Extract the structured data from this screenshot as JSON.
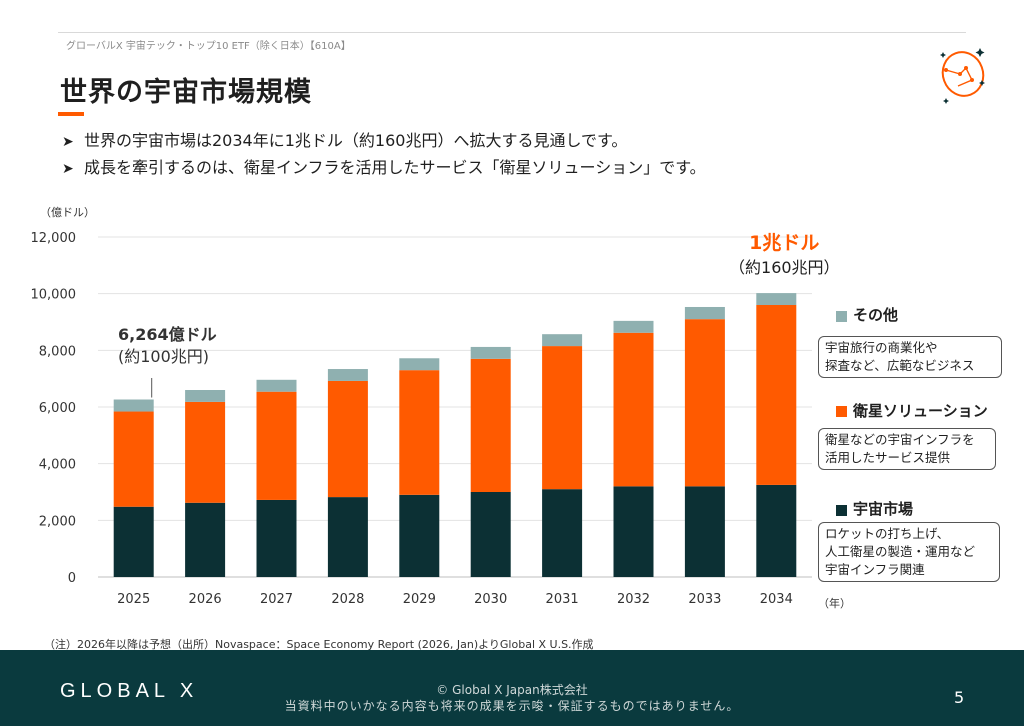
{
  "header": {
    "breadcrumb": "グローバルX 宇宙テック・トップ10 ETF（除く日本）【610A】",
    "title": "世界の宇宙市場規模"
  },
  "bullets": [
    {
      "marker": "➤",
      "text": "世界の宇宙市場は2034年に1兆ドル（約160兆円）へ拡大する見通しです。"
    },
    {
      "marker": "➤",
      "text": "成長を牽引するのは、衛星インフラを活用したサービス「衛星ソリューション」です。"
    }
  ],
  "chart_data": {
    "type": "bar",
    "stacked": true,
    "ylabel": "（億ドル）",
    "xlabel": "（年）",
    "categories": [
      "2025",
      "2026",
      "2027",
      "2028",
      "2029",
      "2030",
      "2031",
      "2032",
      "2033",
      "2034"
    ],
    "ylim": [
      0,
      12000
    ],
    "yticks": [
      0,
      2000,
      4000,
      6000,
      8000,
      10000,
      12000
    ],
    "ytick_labels": [
      "0",
      "2,000",
      "4,000",
      "6,000",
      "8,000",
      "10,000",
      "12,000"
    ],
    "grid": true,
    "series": [
      {
        "name": "宇宙市場",
        "color": "#0c3034",
        "values": [
          2480,
          2620,
          2720,
          2820,
          2900,
          3000,
          3100,
          3200,
          3200,
          3250
        ]
      },
      {
        "name": "衛星ソリューション",
        "color": "#ff5a00",
        "values": [
          3360,
          3560,
          3820,
          4100,
          4400,
          4700,
          5050,
          5420,
          5900,
          6350
        ]
      },
      {
        "name": "その他",
        "color": "#8fb0b0",
        "values": [
          424,
          420,
          420,
          420,
          420,
          420,
          420,
          420,
          430,
          420
        ]
      }
    ],
    "annotations": {
      "start": {
        "line1": "6,264億ドル",
        "line2": "(約100兆円)"
      },
      "end": {
        "line1": "1兆ドル",
        "line2": "（約160兆円）"
      }
    }
  },
  "legend": [
    {
      "title": "その他",
      "color": "#8fb0b0",
      "desc": [
        "宇宙旅行の商業化や",
        "探査など、広範なビジネス"
      ]
    },
    {
      "title": "衛星ソリューション",
      "color": "#ff5a00",
      "desc": [
        "衛星などの宇宙インフラを",
        "活用したサービス提供"
      ]
    },
    {
      "title": "宇宙市場",
      "color": "#0c3034",
      "desc": [
        "ロケットの打ち上げ、",
        "人工衛星の製造・運用など",
        "宇宙インフラ関連"
      ]
    }
  ],
  "footnote": "（注）2026年以降は予想（出所）Novaspace：Space Economy Report (2026, Jan)よりGlobal X U.S.作成",
  "footer": {
    "brand": "GLOBAL X",
    "copyright": "© Global X Japan株式会社",
    "disclaimer": "当資料中のいかなる内容も将来の成果を示唆・保証するものではありません。",
    "page_number": "5"
  }
}
